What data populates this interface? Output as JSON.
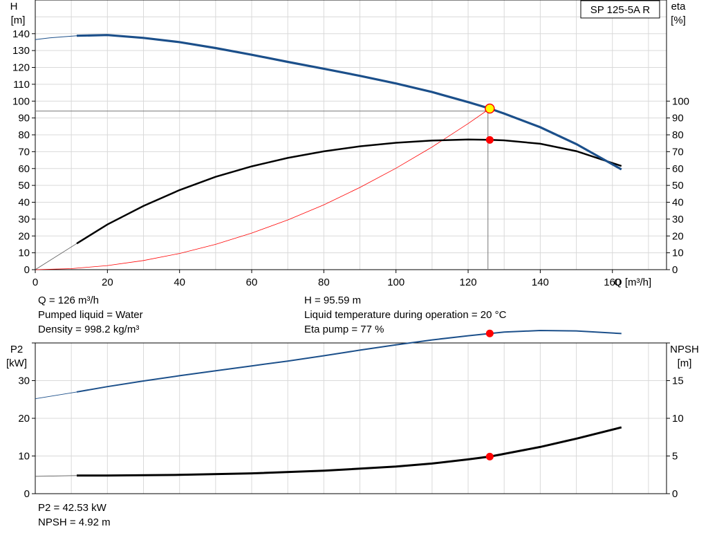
{
  "model_label": "SP 125-5A R",
  "info_top": {
    "q": "Q = 126 m³/h",
    "liquid": "Pumped liquid = Water",
    "density": "Density = 998.2 kg/m³",
    "h": "H = 95.59 m",
    "temp": "Liquid temperature during operation = 20 °C",
    "eta": "Eta pump = 77 %"
  },
  "info_bottom": {
    "p2": "P2 = 42.53 kW",
    "npsh": "NPSH = 4.92 m"
  },
  "colors": {
    "head_curve": "#1b4f8a",
    "eta_curve": "#000000",
    "system_curve": "#ff0000",
    "p2_curve": "#1b4f8a",
    "npsh_curve": "#000000",
    "duty_marker": "#ff0000",
    "head_duty_marker_fill": "#ffff00",
    "grid": "#d9d9d9"
  },
  "chart_data": [
    {
      "type": "line",
      "xlabel": "Q [m³/h]",
      "ylabel": "H\n[m]",
      "y2label": "eta\n[%]",
      "xlim": [
        0,
        175
      ],
      "ylim": [
        0,
        160
      ],
      "y2lim": [
        0,
        160
      ],
      "x_ticks": [
        0,
        20,
        40,
        60,
        80,
        100,
        120,
        140,
        160
      ],
      "y_ticks": [
        0,
        10,
        20,
        30,
        40,
        50,
        60,
        70,
        80,
        90,
        100,
        110,
        120,
        130,
        140
      ],
      "y2_ticks": [
        0,
        10,
        20,
        30,
        40,
        50,
        60,
        70,
        80,
        90,
        100
      ],
      "grid": true,
      "duty_point": {
        "x": 126,
        "h": 95.59,
        "eta": 77
      },
      "series": [
        {
          "key": "head_ext",
          "axis": "y",
          "x": [
            0,
            4,
            8,
            11.5
          ],
          "y": [
            136.5,
            137.5,
            138.2,
            138.8
          ]
        },
        {
          "key": "head",
          "axis": "y",
          "x": [
            11.5,
            20,
            30,
            40,
            50,
            60,
            70,
            80,
            90,
            100,
            110,
            120,
            126,
            130,
            140,
            150,
            162.5
          ],
          "y": [
            138.8,
            139.2,
            137.5,
            135,
            131.5,
            127.5,
            123.3,
            119.2,
            115,
            110.5,
            105.4,
            99.4,
            95.6,
            92.6,
            84.5,
            74.5,
            59.5
          ]
        },
        {
          "key": "eta_ext",
          "axis": "y2",
          "x": [
            0,
            11.5
          ],
          "y": [
            0,
            15.5
          ]
        },
        {
          "key": "eta",
          "axis": "y2",
          "x": [
            11.5,
            20,
            30,
            40,
            50,
            60,
            70,
            80,
            90,
            100,
            110,
            120,
            126,
            130,
            140,
            150,
            162.5
          ],
          "y": [
            15.5,
            26.8,
            37.8,
            47.2,
            55.1,
            61.3,
            66.3,
            70.2,
            73.2,
            75.3,
            76.6,
            77.2,
            77,
            76.7,
            74.7,
            70.3,
            61.5
          ]
        },
        {
          "key": "system",
          "axis": "y",
          "x": [
            0,
            10,
            20,
            30,
            40,
            50,
            60,
            70,
            80,
            90,
            100,
            110,
            120,
            126
          ],
          "y": [
            0,
            0.6,
            2.4,
            5.4,
            9.6,
            15,
            21.7,
            29.5,
            38.5,
            48.8,
            60.2,
            72.8,
            86.7,
            95.6
          ]
        }
      ]
    },
    {
      "type": "line",
      "xlabel": "",
      "ylabel": "P2\n[kW]",
      "y2label": "NPSH\n[m]",
      "xlim": [
        0,
        175
      ],
      "ylim": [
        0,
        40
      ],
      "y2lim": [
        0,
        20
      ],
      "y_ticks": [
        0,
        10,
        20,
        30
      ],
      "y2_ticks": [
        0,
        5,
        10,
        15
      ],
      "grid": true,
      "duty_point": {
        "x": 126,
        "p2": 42.53,
        "npsh": 4.92
      },
      "series": [
        {
          "key": "p2_ext",
          "axis": "y",
          "x": [
            0,
            11.5
          ],
          "y": [
            25.2,
            27
          ]
        },
        {
          "key": "p2",
          "axis": "y",
          "x": [
            11.5,
            20,
            30,
            40,
            50,
            60,
            70,
            80,
            90,
            100,
            110,
            120,
            126,
            130,
            140,
            150,
            162.5
          ],
          "y": [
            27,
            28.4,
            29.9,
            31.3,
            32.6,
            33.9,
            35.2,
            36.6,
            38.1,
            39.5,
            40.8,
            41.9,
            42.5,
            42.9,
            43.3,
            43.2,
            42.5
          ]
        },
        {
          "key": "npsh_ext",
          "axis": "y2",
          "x": [
            0,
            11.5
          ],
          "y": [
            2.3,
            2.4
          ]
        },
        {
          "key": "npsh",
          "axis": "y2",
          "x": [
            11.5,
            20,
            40,
            60,
            80,
            100,
            110,
            120,
            126,
            140,
            150,
            162.5
          ],
          "y": [
            2.4,
            2.4,
            2.5,
            2.7,
            3.05,
            3.6,
            4.0,
            4.55,
            4.92,
            6.2,
            7.3,
            8.8
          ]
        }
      ]
    }
  ]
}
